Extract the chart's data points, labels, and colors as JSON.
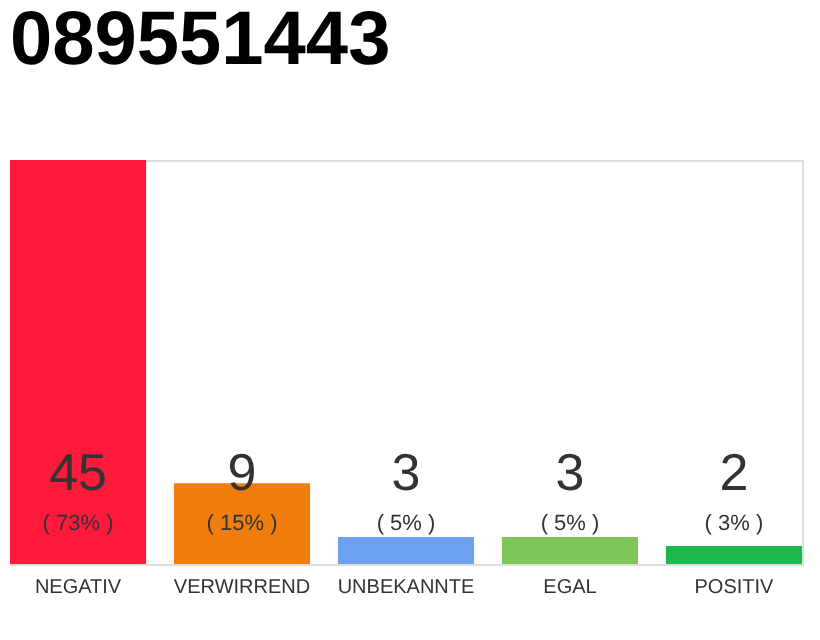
{
  "chart_data": {
    "type": "bar",
    "title": "089551443",
    "categories": [
      "NEGATIV",
      "VERWIRREND",
      "UNBEKANNTE",
      "EGAL",
      "POSITIV"
    ],
    "values": [
      45,
      9,
      3,
      3,
      2
    ],
    "colors": [
      "#ff1a3c",
      "#f07d0c",
      "#6ea0f0",
      "#7ec85a",
      "#1cb94a"
    ],
    "ylim": [
      0,
      45
    ],
    "tick_labels": "x",
    "data_labels": true,
    "grid": false,
    "annotations": [
      "( 73% )",
      "( 15% )",
      "( 5% )",
      "( 5% )",
      "( 3% )"
    ]
  }
}
